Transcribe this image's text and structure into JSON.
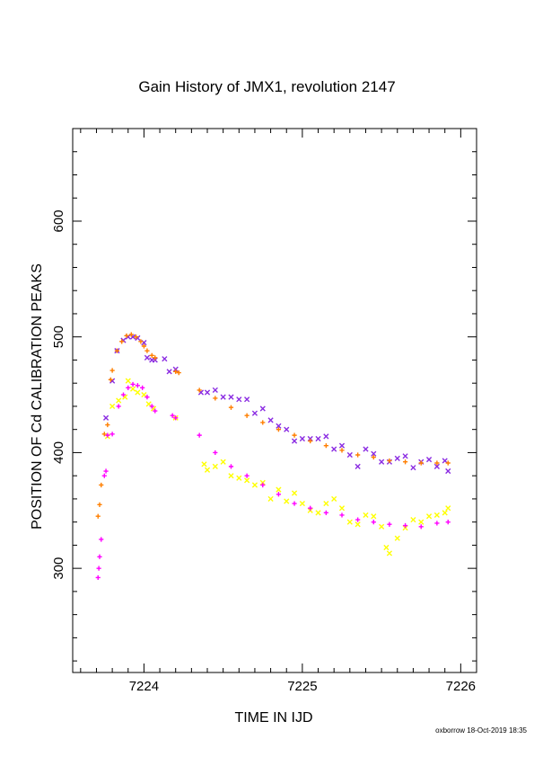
{
  "chart_data": {
    "type": "scatter",
    "title": "Gain History of JMX1, revolution 2147",
    "xlabel": "TIME IN IJD",
    "ylabel": "POSITION OF Cd CALIBRATION PEAKS",
    "xlim": [
      7223.55,
      7226.1
    ],
    "ylim": [
      210,
      680
    ],
    "xticks": [
      7224,
      7225,
      7226
    ],
    "xtick_labels": [
      "7224",
      "7225",
      "7226"
    ],
    "yticks": [
      300,
      400,
      500,
      600
    ],
    "ytick_labels": [
      "300",
      "400",
      "500",
      "600"
    ],
    "grid": false,
    "legend": "none",
    "series": [
      {
        "marker": "x",
        "color": "#8a2be2",
        "points": [
          [
            7223.76,
            430
          ],
          [
            7223.8,
            462
          ],
          [
            7223.83,
            488
          ],
          [
            7223.87,
            497
          ],
          [
            7223.9,
            500
          ],
          [
            7223.93,
            500
          ],
          [
            7223.96,
            499
          ],
          [
            7224.0,
            495
          ],
          [
            7224.02,
            482
          ],
          [
            7224.05,
            480
          ],
          [
            7224.07,
            480
          ],
          [
            7224.13,
            481
          ],
          [
            7224.16,
            470
          ],
          [
            7224.2,
            472
          ],
          [
            7224.36,
            452
          ],
          [
            7224.4,
            452
          ],
          [
            7224.45,
            454
          ],
          [
            7224.5,
            448
          ],
          [
            7224.55,
            448
          ],
          [
            7224.6,
            446
          ],
          [
            7224.65,
            446
          ],
          [
            7224.7,
            434
          ],
          [
            7224.75,
            438
          ],
          [
            7224.8,
            428
          ],
          [
            7224.85,
            423
          ],
          [
            7224.9,
            420
          ],
          [
            7224.95,
            410
          ],
          [
            7225.0,
            412
          ],
          [
            7225.05,
            412
          ],
          [
            7225.1,
            412
          ],
          [
            7225.15,
            414
          ],
          [
            7225.2,
            403
          ],
          [
            7225.25,
            406
          ],
          [
            7225.3,
            398
          ],
          [
            7225.35,
            388
          ],
          [
            7225.4,
            403
          ],
          [
            7225.45,
            399
          ],
          [
            7225.5,
            392
          ],
          [
            7225.55,
            392
          ],
          [
            7225.6,
            395
          ],
          [
            7225.65,
            397
          ],
          [
            7225.7,
            387
          ],
          [
            7225.75,
            392
          ],
          [
            7225.8,
            394
          ],
          [
            7225.85,
            388
          ],
          [
            7225.9,
            393
          ],
          [
            7225.92,
            384
          ]
        ]
      },
      {
        "marker": "+",
        "color": "#ff7f00",
        "points": [
          [
            7223.71,
            345
          ],
          [
            7223.72,
            355
          ],
          [
            7223.73,
            372
          ],
          [
            7223.75,
            416
          ],
          [
            7223.77,
            424
          ],
          [
            7223.79,
            463
          ],
          [
            7223.8,
            471
          ],
          [
            7223.83,
            488
          ],
          [
            7223.86,
            496
          ],
          [
            7223.89,
            501
          ],
          [
            7223.92,
            502
          ],
          [
            7223.95,
            500
          ],
          [
            7223.98,
            496
          ],
          [
            7224.0,
            492
          ],
          [
            7224.02,
            488
          ],
          [
            7224.05,
            484
          ],
          [
            7224.07,
            482
          ],
          [
            7224.2,
            470
          ],
          [
            7224.22,
            469
          ],
          [
            7224.35,
            454
          ],
          [
            7224.45,
            447
          ],
          [
            7224.55,
            439
          ],
          [
            7224.65,
            432
          ],
          [
            7224.75,
            426
          ],
          [
            7224.85,
            420
          ],
          [
            7224.95,
            415
          ],
          [
            7225.05,
            410
          ],
          [
            7225.15,
            406
          ],
          [
            7225.25,
            402
          ],
          [
            7225.35,
            398
          ],
          [
            7225.45,
            396
          ],
          [
            7225.55,
            393
          ],
          [
            7225.65,
            392
          ],
          [
            7225.75,
            391
          ],
          [
            7225.85,
            391
          ],
          [
            7225.92,
            391
          ]
        ]
      },
      {
        "marker": "x",
        "color": "#ffff00",
        "points": [
          [
            7223.77,
            414
          ],
          [
            7223.8,
            440
          ],
          [
            7223.84,
            445
          ],
          [
            7223.88,
            448
          ],
          [
            7223.9,
            462
          ],
          [
            7223.93,
            455
          ],
          [
            7223.96,
            452
          ],
          [
            7224.0,
            450
          ],
          [
            7224.03,
            442
          ],
          [
            7224.06,
            438
          ],
          [
            7224.2,
            430
          ],
          [
            7224.38,
            390
          ],
          [
            7224.4,
            385
          ],
          [
            7224.45,
            388
          ],
          [
            7224.5,
            392
          ],
          [
            7224.55,
            380
          ],
          [
            7224.6,
            378
          ],
          [
            7224.65,
            376
          ],
          [
            7224.7,
            372
          ],
          [
            7224.75,
            374
          ],
          [
            7224.8,
            360
          ],
          [
            7224.85,
            368
          ],
          [
            7224.9,
            358
          ],
          [
            7224.95,
            365
          ],
          [
            7225.0,
            356
          ],
          [
            7225.05,
            350
          ],
          [
            7225.1,
            348
          ],
          [
            7225.15,
            356
          ],
          [
            7225.2,
            360
          ],
          [
            7225.25,
            352
          ],
          [
            7225.3,
            340
          ],
          [
            7225.35,
            338
          ],
          [
            7225.4,
            346
          ],
          [
            7225.45,
            345
          ],
          [
            7225.5,
            336
          ],
          [
            7225.53,
            318
          ],
          [
            7225.55,
            313
          ],
          [
            7225.6,
            326
          ],
          [
            7225.65,
            335
          ],
          [
            7225.7,
            342
          ],
          [
            7225.75,
            340
          ],
          [
            7225.8,
            345
          ],
          [
            7225.85,
            346
          ],
          [
            7225.9,
            348
          ],
          [
            7225.92,
            352
          ]
        ]
      },
      {
        "marker": "+",
        "color": "#ff00ff",
        "points": [
          [
            7223.71,
            292
          ],
          [
            7223.715,
            300
          ],
          [
            7223.72,
            310
          ],
          [
            7223.73,
            325
          ],
          [
            7223.75,
            380
          ],
          [
            7223.76,
            384
          ],
          [
            7223.77,
            415
          ],
          [
            7223.8,
            416
          ],
          [
            7223.84,
            440
          ],
          [
            7223.87,
            450
          ],
          [
            7223.9,
            456
          ],
          [
            7223.93,
            459
          ],
          [
            7223.96,
            458
          ],
          [
            7223.99,
            456
          ],
          [
            7224.02,
            448
          ],
          [
            7224.05,
            440
          ],
          [
            7224.07,
            436
          ],
          [
            7224.18,
            432
          ],
          [
            7224.2,
            430
          ],
          [
            7224.35,
            415
          ],
          [
            7224.45,
            400
          ],
          [
            7224.55,
            388
          ],
          [
            7224.65,
            380
          ],
          [
            7224.75,
            372
          ],
          [
            7224.85,
            364
          ],
          [
            7224.95,
            356
          ],
          [
            7225.05,
            352
          ],
          [
            7225.15,
            348
          ],
          [
            7225.25,
            346
          ],
          [
            7225.35,
            342
          ],
          [
            7225.45,
            340
          ],
          [
            7225.55,
            338
          ],
          [
            7225.65,
            337
          ],
          [
            7225.75,
            336
          ],
          [
            7225.85,
            339
          ],
          [
            7225.92,
            340
          ]
        ]
      }
    ]
  },
  "footer": {
    "credit": "oxborrow 18-Oct-2019 18:35"
  }
}
